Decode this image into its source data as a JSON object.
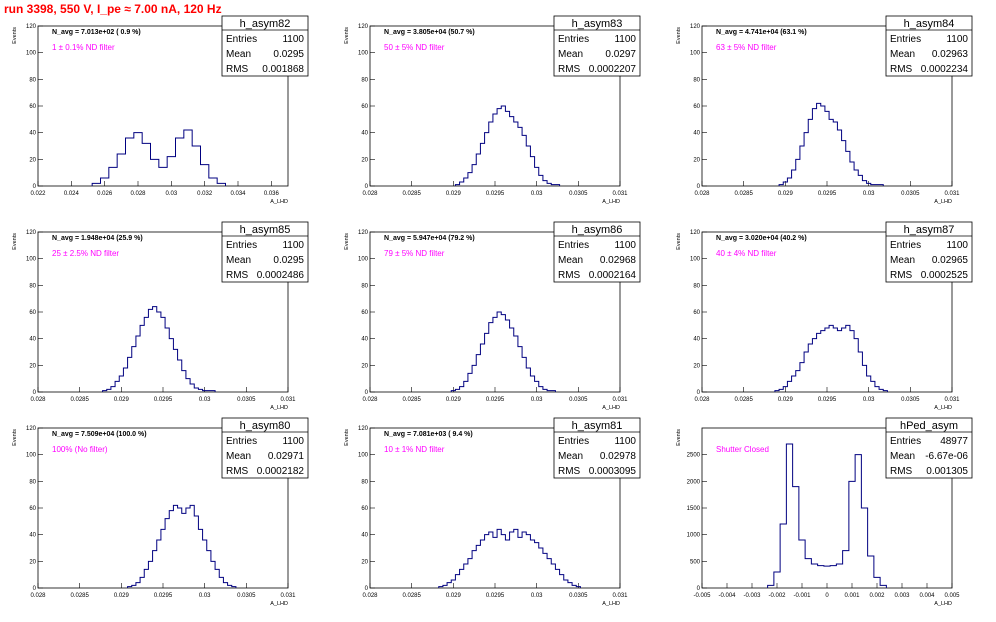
{
  "header": {
    "title": "run 3398,   550 V, I_pe ≈ 7.00 nA, 120 Hz"
  },
  "chart_data": [
    {
      "type": "histogram",
      "name": "h_asym82",
      "n_avg_label": "N_avg = 7.013e+02 ( 0.9 %)",
      "filter_label": "1 ± 0.1% ND filter",
      "stats": {
        "entries": "1100",
        "mean": "0.0295",
        "rms": "0.001868"
      },
      "stats_labels": {
        "entries": "Entries",
        "mean": "Mean",
        "rms": "RMS"
      },
      "ylabel": "Events",
      "xlabel": "A_LHD",
      "xlim": [
        0.022,
        0.037
      ],
      "ylim": [
        0,
        120
      ],
      "xticks": [
        "0.022",
        "0.024",
        "0.026",
        "0.028",
        "0.03",
        "0.032",
        "0.034",
        "0.036"
      ],
      "yticks": [
        "0",
        "20",
        "40",
        "60",
        "80",
        "100",
        "120"
      ],
      "x": [
        0.0255,
        0.026,
        0.0265,
        0.027,
        0.0275,
        0.028,
        0.0285,
        0.029,
        0.0295,
        0.03,
        0.0305,
        0.031,
        0.0315,
        0.032,
        0.0325,
        0.033
      ],
      "values": [
        2,
        6,
        14,
        24,
        36,
        40,
        32,
        20,
        14,
        22,
        36,
        42,
        30,
        16,
        6,
        2
      ]
    },
    {
      "type": "histogram",
      "name": "h_asym83",
      "n_avg_label": "N_avg = 3.805e+04 (50.7 %)",
      "filter_label": "50 ± 5% ND filter",
      "stats": {
        "entries": "1100",
        "mean": "0.0297",
        "rms": "0.0002207"
      },
      "stats_labels": {
        "entries": "Entries",
        "mean": "Mean",
        "rms": "RMS"
      },
      "ylabel": "Events",
      "xlabel": "A_LHD",
      "xlim": [
        0.028,
        0.031
      ],
      "ylim": [
        0,
        120
      ],
      "xticks": [
        "0.028",
        "0.0285",
        "0.029",
        "0.0295",
        "0.03",
        "0.0305",
        "0.031"
      ],
      "yticks": [
        "0",
        "20",
        "40",
        "60",
        "80",
        "100",
        "120"
      ],
      "x": [
        0.02905,
        0.0291,
        0.02915,
        0.0292,
        0.02925,
        0.0293,
        0.02935,
        0.0294,
        0.02945,
        0.0295,
        0.02955,
        0.0296,
        0.02965,
        0.0297,
        0.02975,
        0.0298,
        0.02985,
        0.0299,
        0.02995,
        0.03,
        0.03005,
        0.0301,
        0.03015,
        0.0302,
        0.03025
      ],
      "values": [
        1,
        3,
        6,
        10,
        16,
        24,
        32,
        40,
        48,
        54,
        58,
        60,
        56,
        52,
        48,
        44,
        38,
        30,
        22,
        14,
        8,
        4,
        2,
        1,
        1
      ]
    },
    {
      "type": "histogram",
      "name": "h_asym84",
      "n_avg_label": "N_avg = 4.741e+04 (63.1 %)",
      "filter_label": "63 ± 5% ND filter",
      "stats": {
        "entries": "1100",
        "mean": "0.02963",
        "rms": "0.0002234"
      },
      "stats_labels": {
        "entries": "Entries",
        "mean": "Mean",
        "rms": "RMS"
      },
      "ylabel": "Events",
      "xlabel": "A_LHD",
      "xlim": [
        0.028,
        0.031
      ],
      "ylim": [
        0,
        120
      ],
      "xticks": [
        "0.028",
        "0.0285",
        "0.029",
        "0.0295",
        "0.03",
        "0.0305",
        "0.031"
      ],
      "yticks": [
        "0",
        "20",
        "40",
        "60",
        "80",
        "100",
        "120"
      ],
      "x": [
        0.02895,
        0.029,
        0.02905,
        0.0291,
        0.02915,
        0.0292,
        0.02925,
        0.0293,
        0.02935,
        0.0294,
        0.02945,
        0.0295,
        0.02955,
        0.0296,
        0.02965,
        0.0297,
        0.02975,
        0.0298,
        0.02985,
        0.0299,
        0.02995,
        0.03,
        0.03005,
        0.0301,
        0.03015
      ],
      "values": [
        1,
        3,
        6,
        12,
        20,
        30,
        40,
        50,
        58,
        62,
        60,
        56,
        50,
        48,
        42,
        34,
        26,
        18,
        12,
        8,
        4,
        2,
        1,
        1,
        1
      ]
    },
    {
      "type": "histogram",
      "name": "h_asym85",
      "n_avg_label": "N_avg = 1.948e+04 (25.9 %)",
      "filter_label": "25 ± 2.5% ND filter",
      "stats": {
        "entries": "1100",
        "mean": "0.0295",
        "rms": "0.0002486"
      },
      "stats_labels": {
        "entries": "Entries",
        "mean": "Mean",
        "rms": "RMS"
      },
      "ylabel": "Events",
      "xlabel": "A_LHD",
      "xlim": [
        0.028,
        0.031
      ],
      "ylim": [
        0,
        120
      ],
      "xticks": [
        "0.028",
        "0.0285",
        "0.029",
        "0.0295",
        "0.03",
        "0.0305",
        "0.031"
      ],
      "yticks": [
        "0",
        "20",
        "40",
        "60",
        "80",
        "100",
        "120"
      ],
      "x": [
        0.0288,
        0.02885,
        0.0289,
        0.02895,
        0.029,
        0.02905,
        0.0291,
        0.02915,
        0.0292,
        0.02925,
        0.0293,
        0.02935,
        0.0294,
        0.02945,
        0.0295,
        0.02955,
        0.0296,
        0.02965,
        0.0297,
        0.02975,
        0.0298,
        0.02985,
        0.0299,
        0.02995,
        0.03,
        0.03005,
        0.0301
      ],
      "values": [
        1,
        2,
        4,
        8,
        12,
        18,
        26,
        34,
        42,
        50,
        56,
        62,
        64,
        60,
        56,
        48,
        40,
        32,
        24,
        16,
        10,
        6,
        3,
        2,
        1,
        1,
        1
      ]
    },
    {
      "type": "histogram",
      "name": "h_asym86",
      "n_avg_label": "N_avg = 5.947e+04 (79.2 %)",
      "filter_label": "79 ± 5% ND filter",
      "stats": {
        "entries": "1100",
        "mean": "0.02968",
        "rms": "0.0002164"
      },
      "stats_labels": {
        "entries": "Entries",
        "mean": "Mean",
        "rms": "RMS"
      },
      "ylabel": "Events",
      "xlabel": "A_LHD",
      "xlim": [
        0.028,
        0.031
      ],
      "ylim": [
        0,
        120
      ],
      "xticks": [
        "0.028",
        "0.0285",
        "0.029",
        "0.0295",
        "0.03",
        "0.0305",
        "0.031"
      ],
      "yticks": [
        "0",
        "20",
        "40",
        "60",
        "80",
        "100",
        "120"
      ],
      "x": [
        0.029,
        0.02905,
        0.0291,
        0.02915,
        0.0292,
        0.02925,
        0.0293,
        0.02935,
        0.0294,
        0.02945,
        0.0295,
        0.02955,
        0.0296,
        0.02965,
        0.0297,
        0.02975,
        0.0298,
        0.02985,
        0.0299,
        0.02995,
        0.03,
        0.03005,
        0.0301,
        0.03015,
        0.0302
      ],
      "values": [
        1,
        2,
        4,
        8,
        14,
        20,
        28,
        36,
        44,
        52,
        56,
        60,
        58,
        54,
        48,
        42,
        34,
        26,
        18,
        12,
        8,
        4,
        2,
        1,
        1
      ]
    },
    {
      "type": "histogram",
      "name": "h_asym87",
      "n_avg_label": "N_avg = 3.020e+04 (40.2 %)",
      "filter_label": "40 ± 4% ND filter",
      "stats": {
        "entries": "1100",
        "mean": "0.02965",
        "rms": "0.0002525"
      },
      "stats_labels": {
        "entries": "Entries",
        "mean": "Mean",
        "rms": "RMS"
      },
      "ylabel": "Events",
      "xlabel": "A_LHD",
      "xlim": [
        0.028,
        0.031
      ],
      "ylim": [
        0,
        120
      ],
      "xticks": [
        "0.028",
        "0.0285",
        "0.029",
        "0.0295",
        "0.03",
        "0.0305",
        "0.031"
      ],
      "yticks": [
        "0",
        "20",
        "40",
        "60",
        "80",
        "100",
        "120"
      ],
      "x": [
        0.0289,
        0.02895,
        0.029,
        0.02905,
        0.0291,
        0.02915,
        0.0292,
        0.02925,
        0.0293,
        0.02935,
        0.0294,
        0.02945,
        0.0295,
        0.02955,
        0.0296,
        0.02965,
        0.0297,
        0.02975,
        0.0298,
        0.02985,
        0.0299,
        0.02995,
        0.03,
        0.03005,
        0.0301,
        0.03015,
        0.0302
      ],
      "values": [
        1,
        2,
        4,
        8,
        12,
        16,
        22,
        30,
        36,
        40,
        44,
        46,
        48,
        50,
        48,
        46,
        48,
        50,
        46,
        40,
        30,
        20,
        12,
        8,
        4,
        2,
        1
      ]
    },
    {
      "type": "histogram",
      "name": "h_asym80",
      "n_avg_label": "N_avg = 7.509e+04 (100.0 %)",
      "filter_label": "100% (No filter)",
      "stats": {
        "entries": "1100",
        "mean": "0.02971",
        "rms": "0.0002182"
      },
      "stats_labels": {
        "entries": "Entries",
        "mean": "Mean",
        "rms": "RMS"
      },
      "ylabel": "Events",
      "xlabel": "A_LHD",
      "xlim": [
        0.028,
        0.031
      ],
      "ylim": [
        0,
        120
      ],
      "xticks": [
        "0.028",
        "0.0285",
        "0.029",
        "0.0295",
        "0.03",
        "0.0305",
        "0.031"
      ],
      "yticks": [
        "0",
        "20",
        "40",
        "60",
        "80",
        "100",
        "120"
      ],
      "x": [
        0.0291,
        0.02915,
        0.0292,
        0.02925,
        0.0293,
        0.02935,
        0.0294,
        0.02945,
        0.0295,
        0.02955,
        0.0296,
        0.02965,
        0.0297,
        0.02975,
        0.0298,
        0.02985,
        0.0299,
        0.02995,
        0.03,
        0.03005,
        0.0301,
        0.03015,
        0.0302,
        0.03025,
        0.0303,
        0.03035
      ],
      "values": [
        1,
        2,
        4,
        8,
        14,
        20,
        28,
        36,
        44,
        52,
        58,
        62,
        60,
        56,
        60,
        62,
        54,
        44,
        36,
        28,
        20,
        14,
        8,
        4,
        2,
        1
      ]
    },
    {
      "type": "histogram",
      "name": "h_asym81",
      "n_avg_label": "N_avg = 7.081e+03 ( 9.4 %)",
      "filter_label": "10 ± 1% ND filter",
      "stats": {
        "entries": "1100",
        "mean": "0.02978",
        "rms": "0.0003095"
      },
      "stats_labels": {
        "entries": "Entries",
        "mean": "Mean",
        "rms": "RMS"
      },
      "ylabel": "Events",
      "xlabel": "A_LHD",
      "xlim": [
        0.028,
        0.031
      ],
      "ylim": [
        0,
        120
      ],
      "xticks": [
        "0.028",
        "0.0285",
        "0.029",
        "0.0295",
        "0.03",
        "0.0305",
        "0.031"
      ],
      "yticks": [
        "0",
        "20",
        "40",
        "60",
        "80",
        "100",
        "120"
      ],
      "x": [
        0.02885,
        0.0289,
        0.02895,
        0.029,
        0.02905,
        0.0291,
        0.02915,
        0.0292,
        0.02925,
        0.0293,
        0.02935,
        0.0294,
        0.02945,
        0.0295,
        0.02955,
        0.0296,
        0.02965,
        0.0297,
        0.02975,
        0.0298,
        0.02985,
        0.0299,
        0.02995,
        0.03,
        0.03005,
        0.0301,
        0.03015,
        0.0302,
        0.03025,
        0.0303,
        0.03035,
        0.0304,
        0.03045,
        0.0305
      ],
      "values": [
        1,
        2,
        4,
        6,
        10,
        14,
        18,
        22,
        28,
        32,
        36,
        40,
        42,
        38,
        44,
        40,
        36,
        42,
        44,
        38,
        42,
        40,
        36,
        34,
        30,
        26,
        22,
        18,
        14,
        10,
        6,
        4,
        2,
        1
      ]
    },
    {
      "type": "histogram",
      "name": "hPed_asym",
      "n_avg_label": "",
      "filter_label": "Shutter Closed",
      "stats": {
        "entries": "48977",
        "mean": "-6.67e-06",
        "rms": "0.001305"
      },
      "stats_labels": {
        "entries": "Entries",
        "mean": "Mean",
        "rms": "RMS"
      },
      "ylabel": "Events",
      "xlabel": "A_LHD",
      "xlim": [
        -0.005,
        0.005
      ],
      "ylim": [
        0,
        3000
      ],
      "xticks": [
        "-0.005",
        "-0.004",
        "-0.003",
        "-0.002",
        "-0.001",
        "0",
        "0.001",
        "0.002",
        "0.003",
        "0.004",
        "0.005"
      ],
      "yticks": [
        "0",
        "500",
        "1000",
        "1500",
        "2000",
        "2500"
      ],
      "x": [
        -0.00225,
        -0.002,
        -0.00175,
        -0.0015,
        -0.00125,
        -0.001,
        -0.00075,
        -0.0005,
        -0.00025,
        0,
        0.00025,
        0.0005,
        0.00075,
        0.001,
        0.00125,
        0.0015,
        0.00175,
        0.002,
        0.00225
      ],
      "values": [
        50,
        300,
        1200,
        2700,
        1900,
        900,
        550,
        450,
        420,
        410,
        420,
        450,
        700,
        2000,
        2500,
        1500,
        600,
        200,
        50
      ]
    }
  ]
}
